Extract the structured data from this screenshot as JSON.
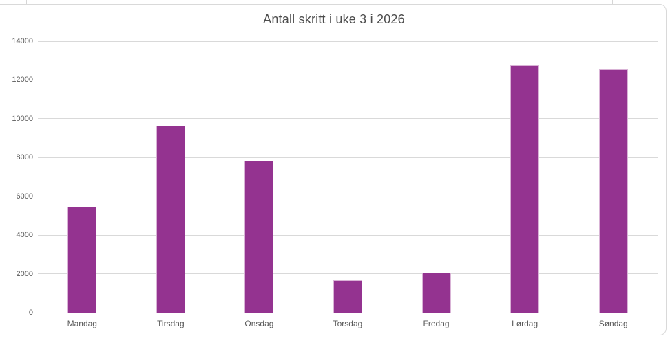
{
  "chart_data": {
    "type": "bar",
    "title": "Antall skritt i uke 3 i 2026",
    "categories": [
      "Mandag",
      "Tirsdag",
      "Onsdag",
      "Torsdag",
      "Fredag",
      "Lørdag",
      "Søndag"
    ],
    "values": [
      5450,
      9650,
      7850,
      1650,
      2050,
      12750,
      12550
    ],
    "xlabel": "",
    "ylabel": "",
    "ylim": [
      0,
      14000
    ],
    "ytick_step": 2000,
    "ytick_labels": [
      "0",
      "2000",
      "4000",
      "6000",
      "8000",
      "10000",
      "12000",
      "14000"
    ],
    "grid": true,
    "legend": false,
    "bar_color": "#943390",
    "bar_edge_color": "#d9b3d6",
    "gridline_color": "#d9d9d9",
    "axis_line_color": "#c3c1c1",
    "label_color": "#595959",
    "title_color": "#4d4d4d"
  }
}
